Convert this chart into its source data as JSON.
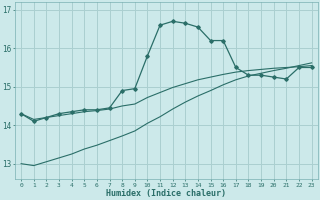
{
  "title": "",
  "xlabel": "Humidex (Indice chaleur)",
  "bg_color": "#cce9ea",
  "grid_color": "#aacfd0",
  "line_color": "#2a6e68",
  "x_ticks": [
    0,
    1,
    2,
    3,
    4,
    5,
    6,
    7,
    8,
    9,
    10,
    11,
    12,
    13,
    14,
    15,
    16,
    17,
    18,
    19,
    20,
    21,
    22,
    23
  ],
  "y_ticks": [
    13,
    14,
    15,
    16,
    17
  ],
  "ylim": [
    12.6,
    17.2
  ],
  "xlim": [
    -0.5,
    23.5
  ],
  "main_line": [
    14.3,
    14.1,
    14.2,
    14.3,
    14.35,
    14.4,
    14.4,
    14.45,
    14.9,
    14.95,
    15.8,
    16.6,
    16.7,
    16.65,
    16.55,
    16.2,
    16.2,
    15.5,
    15.3,
    15.3,
    15.25,
    15.2,
    15.5,
    15.5
  ],
  "line2": [
    14.3,
    14.15,
    14.2,
    14.25,
    14.3,
    14.35,
    14.38,
    14.42,
    14.5,
    14.55,
    14.72,
    14.85,
    14.98,
    15.08,
    15.18,
    15.25,
    15.32,
    15.38,
    15.42,
    15.45,
    15.48,
    15.5,
    15.52,
    15.55
  ],
  "line3": [
    13.0,
    12.95,
    13.05,
    13.15,
    13.25,
    13.38,
    13.48,
    13.6,
    13.72,
    13.85,
    14.05,
    14.22,
    14.42,
    14.6,
    14.76,
    14.9,
    15.05,
    15.18,
    15.28,
    15.35,
    15.42,
    15.48,
    15.55,
    15.62
  ]
}
